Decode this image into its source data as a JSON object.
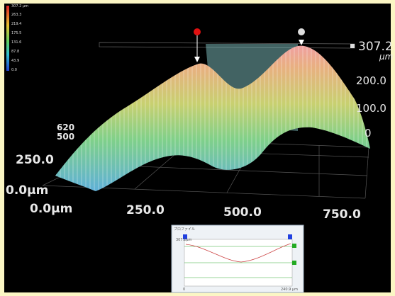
{
  "color_scale": {
    "labels": [
      "307.2 µm",
      "263.3",
      "219.4",
      "175.5",
      "131.6",
      "87.8",
      "43.9",
      "0.0"
    ]
  },
  "z_axis": {
    "max_value": "307.2",
    "max_unit": "µm",
    "labels": [
      "200.0",
      "100.0",
      "0"
    ]
  },
  "y_axis": {
    "labels": [
      "620",
      "500",
      "250.0",
      "0.0µm"
    ]
  },
  "x_axis": {
    "labels": [
      "0.0µm",
      "250.0",
      "500.0",
      "750.0"
    ]
  },
  "profile": {
    "title": "プロファイル",
    "top_label": "307.2µm",
    "x_start": "0",
    "x_end": "240.9 µm"
  }
}
